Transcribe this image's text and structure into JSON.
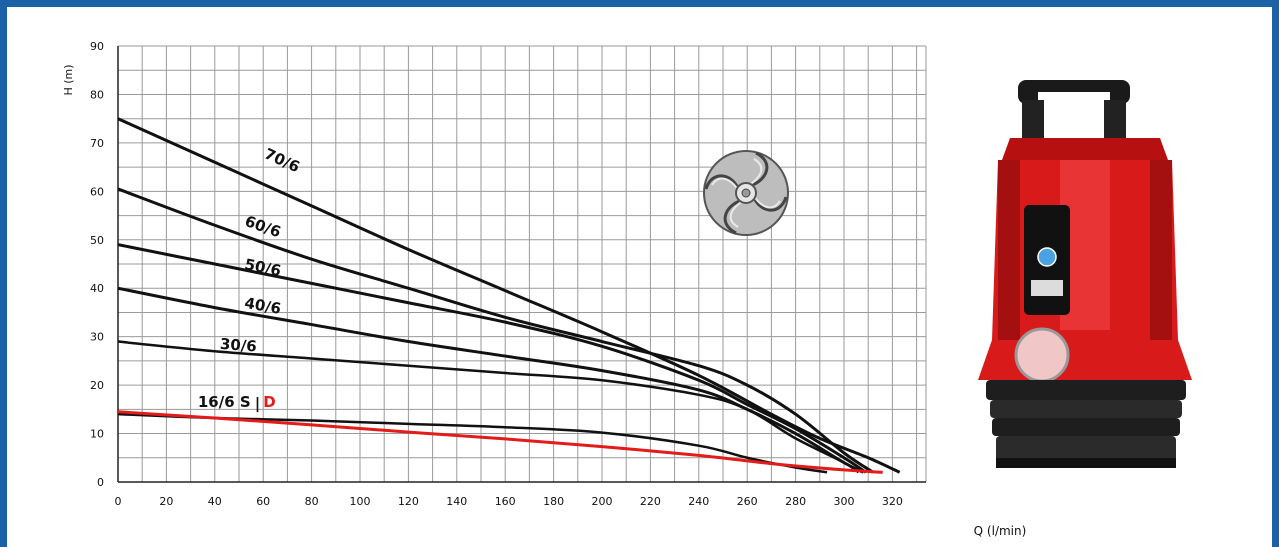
{
  "chart_data": {
    "type": "line",
    "title": "",
    "xlabel": "Q (l/min)",
    "ylabel": "H (m)",
    "xlim": [
      0,
      330
    ],
    "ylim": [
      0,
      90
    ],
    "x_ticks": [
      0,
      20,
      40,
      60,
      80,
      100,
      120,
      140,
      160,
      180,
      200,
      220,
      240,
      260,
      280,
      300,
      320
    ],
    "y_ticks": [
      0,
      10,
      20,
      30,
      40,
      50,
      60,
      70,
      80,
      90
    ],
    "grid": true,
    "series": [
      {
        "name": "70/6",
        "color": "#111111",
        "label_at": [
          60,
          67
        ],
        "points": [
          [
            0,
            75
          ],
          [
            40,
            66
          ],
          [
            80,
            57
          ],
          [
            120,
            48
          ],
          [
            160,
            39.5
          ],
          [
            200,
            31
          ],
          [
            240,
            22
          ],
          [
            270,
            14
          ],
          [
            290,
            9
          ],
          [
            310,
            5
          ],
          [
            323,
            2
          ]
        ]
      },
      {
        "name": "60/6",
        "color": "#111111",
        "label_at": [
          52,
          53
        ],
        "points": [
          [
            0,
            60.5
          ],
          [
            40,
            53
          ],
          [
            80,
            46
          ],
          [
            120,
            40
          ],
          [
            160,
            34
          ],
          [
            200,
            29
          ],
          [
            240,
            24
          ],
          [
            260,
            20
          ],
          [
            280,
            14
          ],
          [
            300,
            6
          ],
          [
            312,
            2
          ]
        ]
      },
      {
        "name": "50/6",
        "color": "#111111",
        "label_at": [
          52,
          44
        ],
        "points": [
          [
            0,
            49
          ],
          [
            40,
            45
          ],
          [
            80,
            41
          ],
          [
            120,
            37
          ],
          [
            160,
            33
          ],
          [
            200,
            28
          ],
          [
            240,
            21
          ],
          [
            260,
            16
          ],
          [
            280,
            11
          ],
          [
            300,
            5
          ],
          [
            309,
            2
          ]
        ]
      },
      {
        "name": "40/6",
        "color": "#111111",
        "label_at": [
          52,
          36
        ],
        "points": [
          [
            0,
            40
          ],
          [
            40,
            36
          ],
          [
            80,
            32.5
          ],
          [
            120,
            29
          ],
          [
            160,
            26
          ],
          [
            200,
            23
          ],
          [
            240,
            19
          ],
          [
            260,
            15
          ],
          [
            280,
            10
          ],
          [
            300,
            4
          ],
          [
            308,
            2
          ]
        ]
      },
      {
        "name": "30/6",
        "color": "#111111",
        "label_at": [
          42,
          27.5
        ],
        "points": [
          [
            0,
            29
          ],
          [
            40,
            27
          ],
          [
            80,
            25.5
          ],
          [
            120,
            24
          ],
          [
            160,
            22.5
          ],
          [
            200,
            21
          ],
          [
            240,
            18
          ],
          [
            260,
            15
          ],
          [
            280,
            9
          ],
          [
            300,
            4
          ],
          [
            306,
            2
          ]
        ]
      },
      {
        "name": "16/6 S",
        "color": "#111111",
        "label_at": [
          33,
          15.5
        ],
        "points": [
          [
            0,
            14
          ],
          [
            40,
            13.2
          ],
          [
            80,
            12.7
          ],
          [
            120,
            12
          ],
          [
            160,
            11.3
          ],
          [
            200,
            10.2
          ],
          [
            240,
            7.5
          ],
          [
            260,
            5
          ],
          [
            280,
            3
          ],
          [
            293,
            2
          ]
        ]
      },
      {
        "name": "D",
        "color": "#e31b1b",
        "label_at": [
          60,
          15.5
        ],
        "points": [
          [
            0,
            14.5
          ],
          [
            40,
            13.2
          ],
          [
            80,
            11.8
          ],
          [
            120,
            10.3
          ],
          [
            160,
            8.9
          ],
          [
            200,
            7.3
          ],
          [
            240,
            5.5
          ],
          [
            270,
            3.8
          ],
          [
            300,
            2.5
          ],
          [
            316,
            2
          ]
        ]
      }
    ]
  },
  "labels": {
    "q_unit": "Q (l/min)",
    "h_unit": "H (m)",
    "separator": "|"
  }
}
